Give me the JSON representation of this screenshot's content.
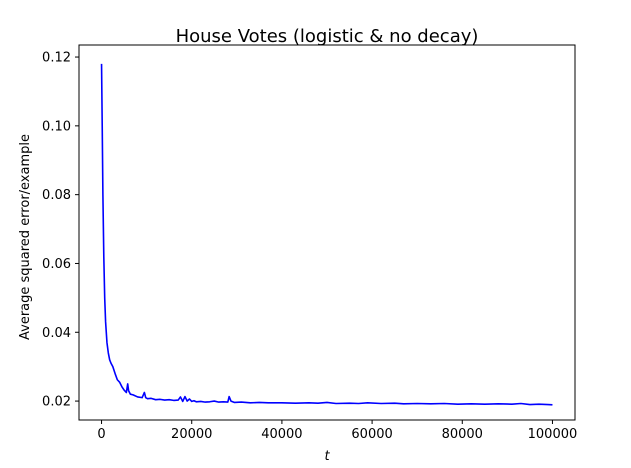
{
  "chart_data": {
    "type": "line",
    "title": "House Votes (logistic & no decay)",
    "xlabel": "t",
    "ylabel": "Average squared error/example",
    "xlim": [
      -5000,
      105000
    ],
    "ylim": [
      0.0145,
      0.1235
    ],
    "x_ticks": [
      0,
      20000,
      40000,
      60000,
      80000,
      100000
    ],
    "x_tick_labels": [
      "0",
      "20000",
      "40000",
      "60000",
      "80000",
      "100000"
    ],
    "y_ticks": [
      0.02,
      0.04,
      0.06,
      0.08,
      0.1,
      0.12
    ],
    "y_tick_labels": [
      "0.02",
      "0.04",
      "0.06",
      "0.08",
      "0.10",
      "0.12"
    ],
    "grid": false,
    "legend": "none",
    "series": [
      {
        "color": "#0000ff",
        "x": [
          0,
          150,
          300,
          500,
          700,
          900,
          1200,
          1500,
          1800,
          2100,
          2500,
          3000,
          3500,
          4000,
          4500,
          5000,
          5500,
          5800,
          6000,
          6400,
          7000,
          8000,
          9000,
          9500,
          9800,
          10200,
          11000,
          12000,
          13000,
          14000,
          15000,
          16000,
          17000,
          17500,
          18000,
          18500,
          19000,
          19500,
          20000,
          20500,
          21000,
          22000,
          23000,
          24000,
          25000,
          26000,
          27000,
          28000,
          28300,
          28700,
          29500,
          31000,
          33000,
          35000,
          37000,
          40000,
          43000,
          46000,
          48000,
          50000,
          52000,
          55000,
          57000,
          59000,
          62000,
          65000,
          67000,
          70000,
          73000,
          76000,
          79000,
          82000,
          85000,
          88000,
          91000,
          93000,
          95000,
          97000,
          99000,
          100000
        ],
        "y": [
          0.118,
          0.1,
          0.08,
          0.062,
          0.05,
          0.043,
          0.037,
          0.034,
          0.032,
          0.031,
          0.03,
          0.028,
          0.0262,
          0.0255,
          0.0242,
          0.0232,
          0.0225,
          0.025,
          0.023,
          0.022,
          0.0218,
          0.0212,
          0.021,
          0.0225,
          0.021,
          0.0207,
          0.0208,
          0.0204,
          0.0205,
          0.0203,
          0.0204,
          0.0202,
          0.0203,
          0.0212,
          0.0199,
          0.0213,
          0.02,
          0.0206,
          0.0199,
          0.0201,
          0.0198,
          0.0199,
          0.0197,
          0.0198,
          0.02,
          0.0197,
          0.0198,
          0.0197,
          0.0213,
          0.02,
          0.0196,
          0.0197,
          0.0195,
          0.0196,
          0.0195,
          0.0195,
          0.0194,
          0.0195,
          0.0194,
          0.0196,
          0.0193,
          0.0194,
          0.0193,
          0.0195,
          0.0193,
          0.0194,
          0.0192,
          0.0193,
          0.0192,
          0.0193,
          0.0191,
          0.0192,
          0.0191,
          0.0192,
          0.0191,
          0.0193,
          0.019,
          0.0191,
          0.019,
          0.0189
        ]
      }
    ]
  }
}
